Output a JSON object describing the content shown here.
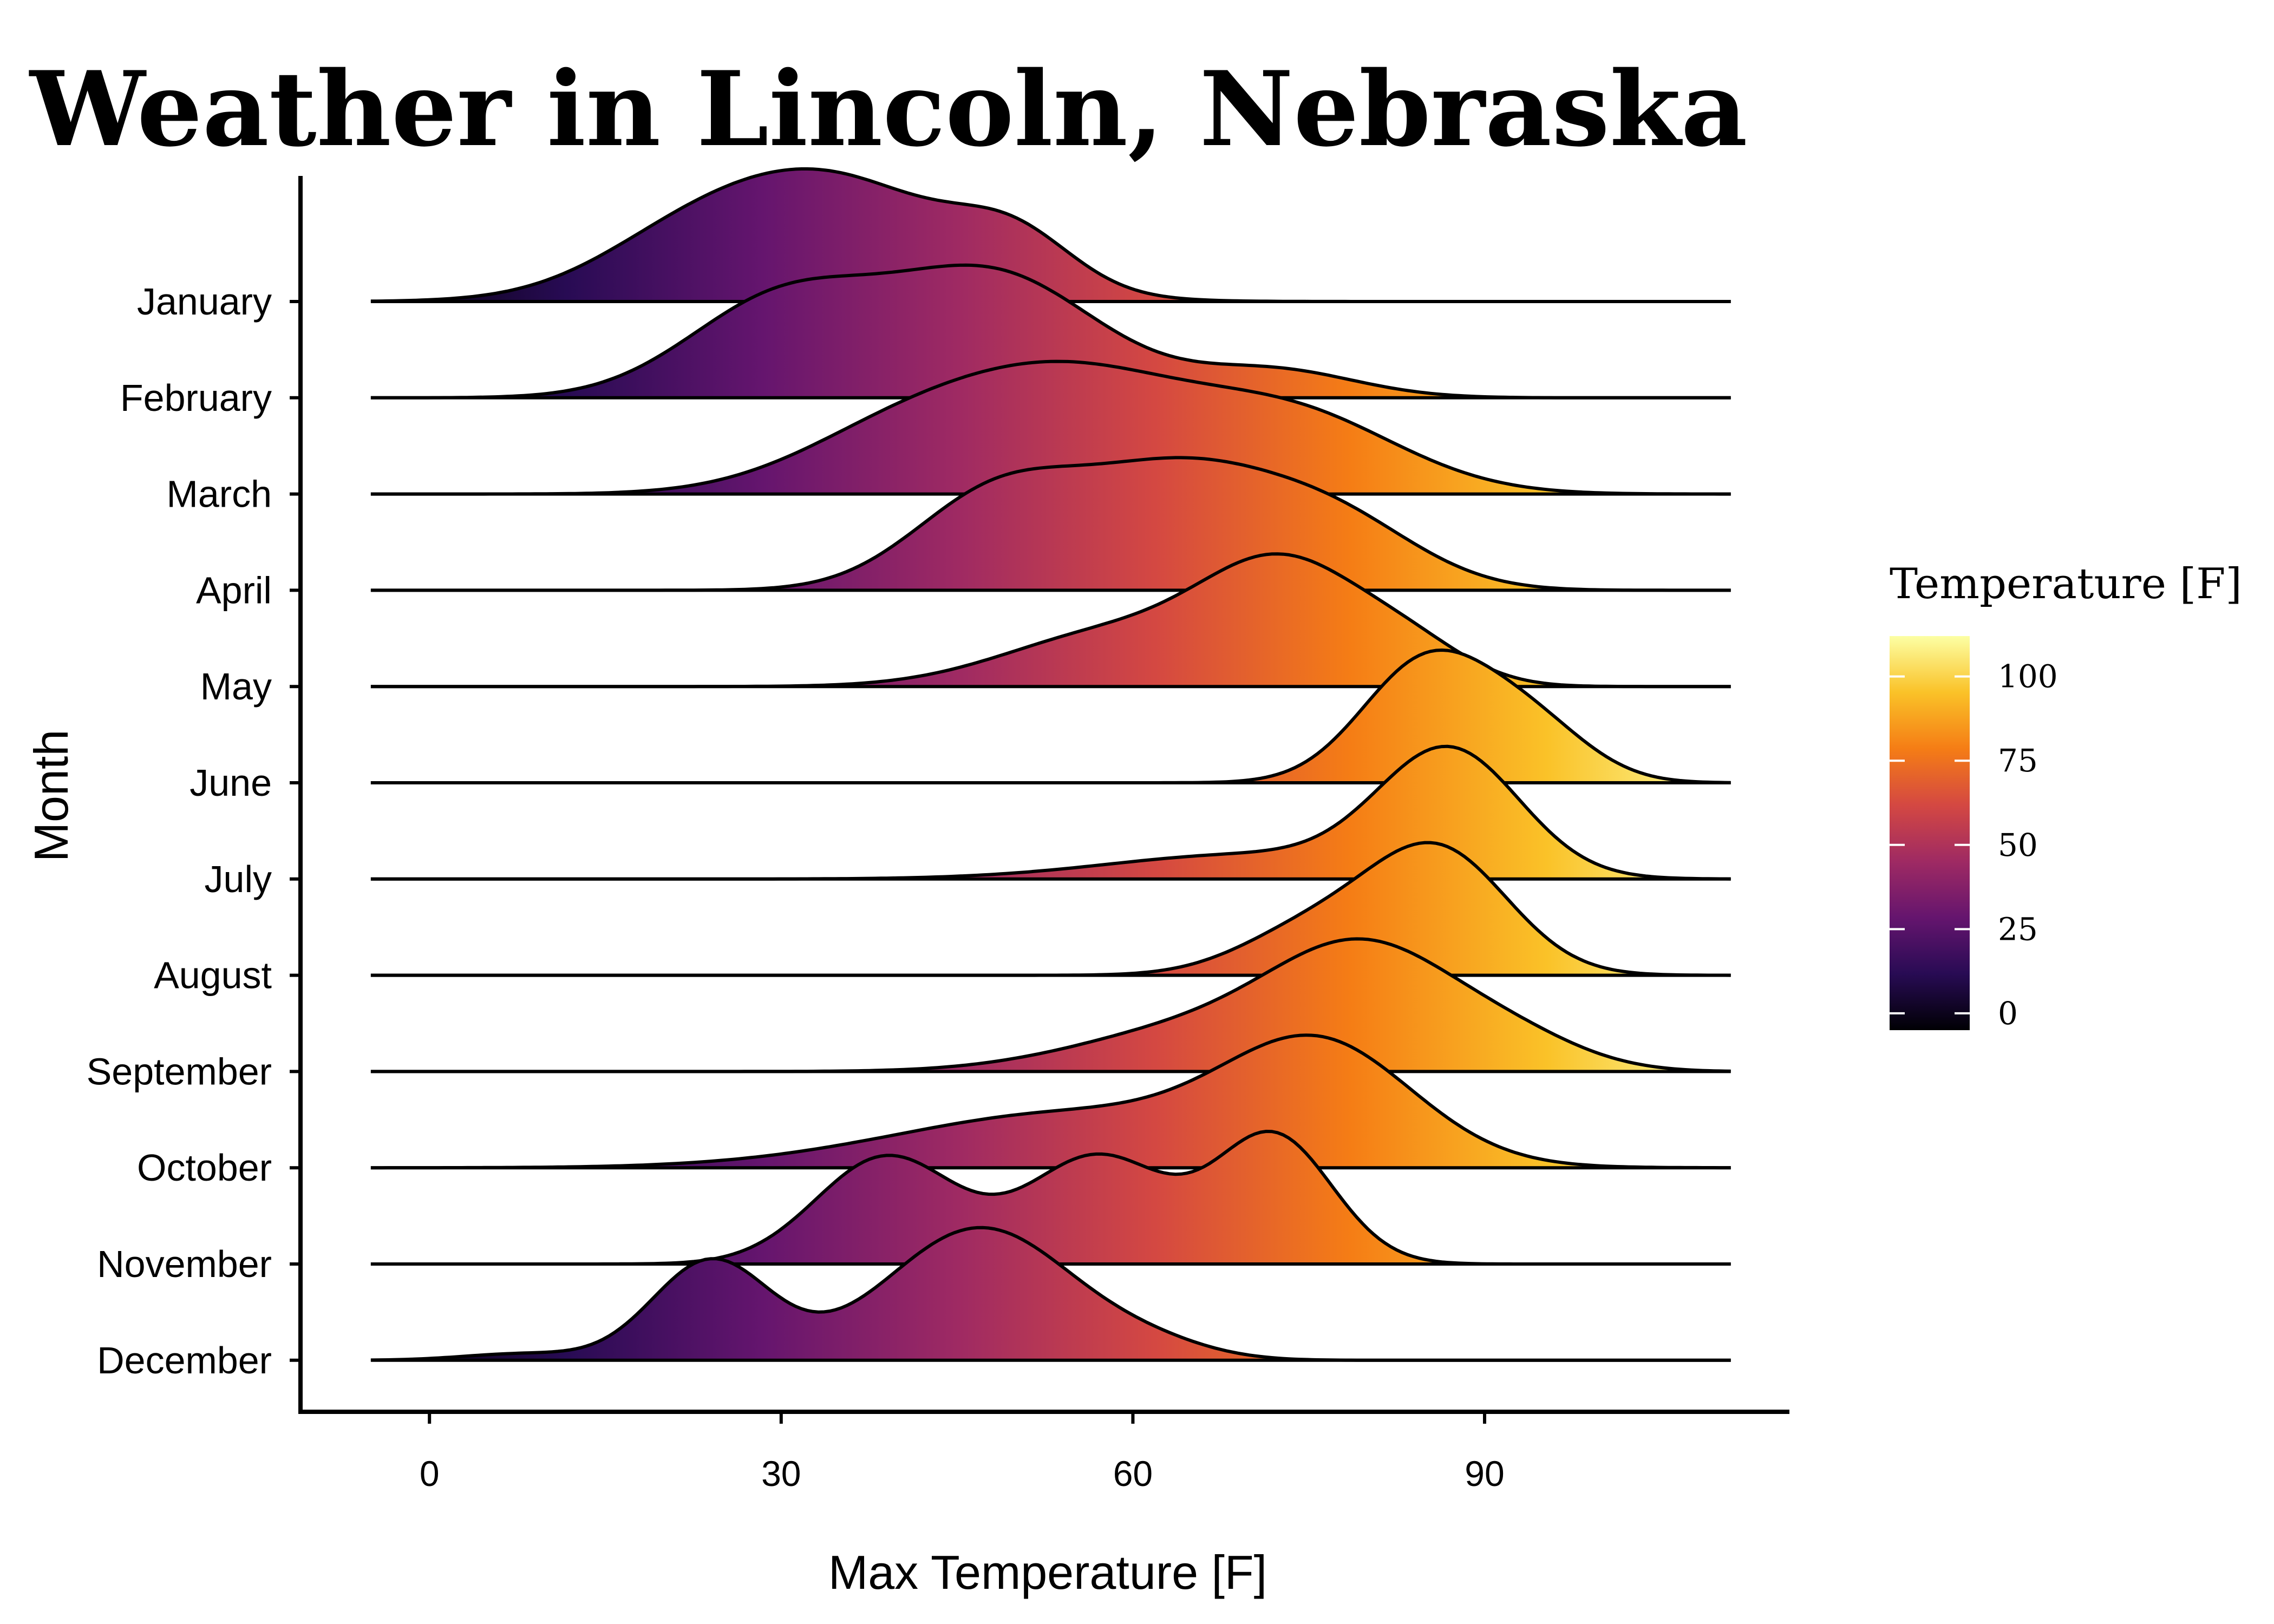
{
  "chart_data": {
    "type": "ridgeline",
    "title": "Weather in Lincoln, Nebraska",
    "xlabel": "Max Temperature [F]",
    "ylabel": "Month",
    "xlim": [
      -11,
      116
    ],
    "x_range_drawn": [
      -5,
      111
    ],
    "x_ticks": [
      0,
      30,
      60,
      90
    ],
    "categories": [
      "January",
      "February",
      "March",
      "April",
      "May",
      "June",
      "July",
      "August",
      "September",
      "October",
      "November",
      "December"
    ],
    "series": [
      {
        "name": "January",
        "peaks": [
          [
            33,
            11,
            1.0
          ],
          [
            50,
            5,
            0.35
          ],
          [
            20,
            7,
            0.15
          ]
        ]
      },
      {
        "name": "February",
        "peaks": [
          [
            30,
            8,
            0.7
          ],
          [
            48,
            9,
            0.9
          ],
          [
            72,
            7,
            0.2
          ]
        ]
      },
      {
        "name": "March",
        "peaks": [
          [
            55,
            10,
            0.9
          ],
          [
            40,
            9,
            0.45
          ],
          [
            74,
            9,
            0.6
          ]
        ]
      },
      {
        "name": "April",
        "peaks": [
          [
            48,
            7,
            0.65
          ],
          [
            64,
            9,
            0.9
          ],
          [
            78,
            7,
            0.4
          ]
        ]
      },
      {
        "name": "May",
        "peaks": [
          [
            73,
            7,
            1.0
          ],
          [
            58,
            9,
            0.45
          ],
          [
            84,
            5,
            0.25
          ]
        ]
      },
      {
        "name": "June",
        "peaks": [
          [
            85,
            5.5,
            1.0
          ],
          [
            94,
            5,
            0.45
          ]
        ]
      },
      {
        "name": "July",
        "peaks": [
          [
            87,
            6,
            1.0
          ],
          [
            70,
            12,
            0.2
          ]
        ]
      },
      {
        "name": "August",
        "peaks": [
          [
            86,
            6,
            1.0
          ],
          [
            75,
            6,
            0.35
          ]
        ]
      },
      {
        "name": "September",
        "peaks": [
          [
            80,
            8,
            1.0
          ],
          [
            65,
            10,
            0.35
          ],
          [
            93,
            6,
            0.2
          ]
        ]
      },
      {
        "name": "October",
        "peaks": [
          [
            76,
            8,
            1.0
          ],
          [
            55,
            15,
            0.5
          ]
        ]
      },
      {
        "name": "November",
        "peaks": [
          [
            39,
            6,
            0.8
          ],
          [
            57,
            6,
            0.8
          ],
          [
            72,
            5,
            0.95
          ]
        ]
      },
      {
        "name": "December",
        "peaks": [
          [
            24,
            5,
            0.75
          ],
          [
            47,
            8,
            1.0
          ],
          [
            8,
            5,
            0.05
          ],
          [
            62,
            5,
            0.08
          ]
        ]
      }
    ],
    "colorbar": {
      "title": "Temperature [F]",
      "range": [
        -5,
        112
      ],
      "ticks": [
        0,
        25,
        50,
        75,
        100
      ],
      "colormap": [
        "#000004",
        "#280b54",
        "#65156e",
        "#9f2a63",
        "#d44842",
        "#f57d15",
        "#fac228",
        "#fcffa4"
      ]
    }
  }
}
